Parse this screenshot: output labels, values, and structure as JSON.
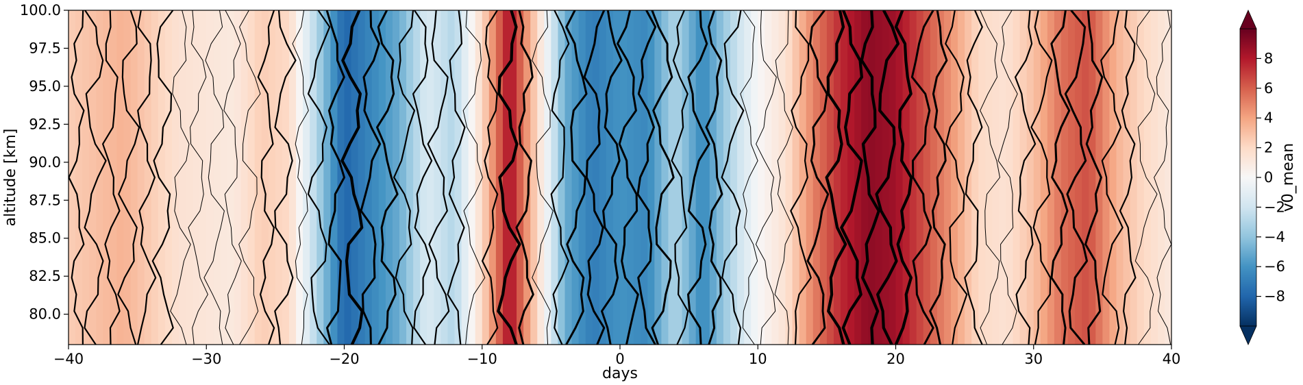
{
  "chart_data": {
    "type": "heatmap",
    "title": "",
    "xlabel": "days",
    "ylabel": "altitude [km]",
    "xlim": [
      -40,
      40
    ],
    "ylim": [
      78,
      100
    ],
    "xticks": [
      -40,
      -30,
      -20,
      -10,
      0,
      10,
      20,
      30,
      40
    ],
    "yticks": [
      80.0,
      82.5,
      85.0,
      87.5,
      90.0,
      92.5,
      95.0,
      97.5,
      100.0
    ],
    "xtick_labels": [
      "−40",
      "−30",
      "−20",
      "−10",
      "0",
      "10",
      "20",
      "30",
      "40"
    ],
    "ytick_labels": [
      "80.0",
      "82.5",
      "85.0",
      "87.5",
      "90.0",
      "92.5",
      "95.0",
      "97.5",
      "100.0"
    ],
    "colormap": "RdBu_r",
    "colorbar": {
      "label": "v0_mean",
      "range": [
        -10,
        10
      ],
      "ticks": [
        -8,
        -6,
        -4,
        -2,
        0,
        2,
        4,
        6,
        8
      ],
      "tick_labels": [
        "−8",
        "−6",
        "−4",
        "−2",
        "0",
        "2",
        "4",
        "6",
        "8"
      ],
      "extend": "both",
      "colors": [
        "#053061",
        "#2166ac",
        "#4393c3",
        "#92c5de",
        "#d1e5f0",
        "#f7f7f7",
        "#fddbc7",
        "#f4a582",
        "#d6604d",
        "#b2182b",
        "#67001f"
      ]
    },
    "field_profile": {
      "days": [
        -40,
        -36,
        -32,
        -28,
        -26,
        -24,
        -20,
        -16,
        -14,
        -12,
        -10,
        -8,
        -6,
        -4,
        -2,
        0,
        2,
        4,
        6,
        8,
        10,
        12,
        14,
        16,
        18,
        20,
        22,
        24,
        26,
        28,
        30,
        32,
        34,
        36,
        38,
        40
      ],
      "v0_mean": [
        2.5,
        3.5,
        1.5,
        1.0,
        2.5,
        2.0,
        -8.0,
        -5.0,
        -1.5,
        -3.0,
        2.0,
        8.5,
        2.0,
        -5.0,
        -7.0,
        -6.0,
        -6.5,
        -3.0,
        -6.5,
        -3.0,
        0.0,
        1.5,
        5.0,
        7.5,
        9.0,
        8.5,
        6.5,
        4.5,
        2.0,
        1.5,
        3.0,
        5.5,
        6.5,
        3.5,
        2.0,
        1.0
      ]
    }
  }
}
